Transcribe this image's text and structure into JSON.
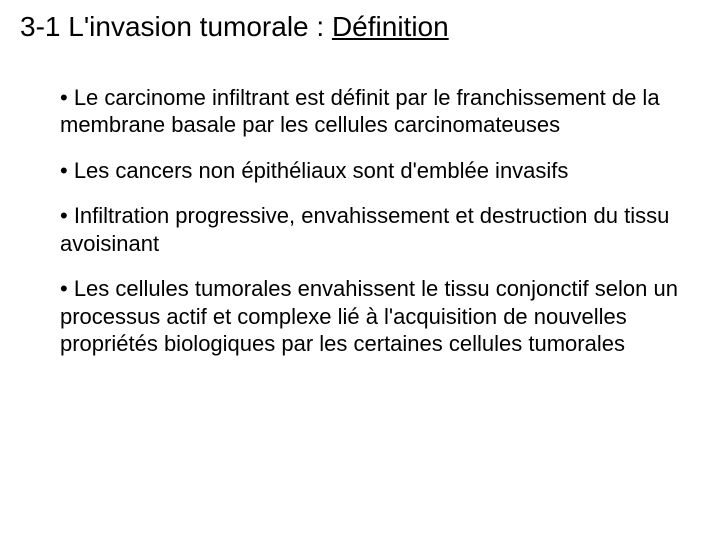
{
  "slide": {
    "title_prefix": "3-1 L'invasion tumorale : ",
    "title_underlined": "Définition",
    "title_fontsize": 28,
    "body_fontsize": 22,
    "text_color": "#000000",
    "background_color": "#ffffff",
    "font_family": "Comic Sans MS",
    "bullets": [
      "• Le carcinome infiltrant est définit par le franchissement de la membrane basale par les cellules carcinomateuses",
      "• Les cancers non épithéliaux sont d'emblée invasifs",
      "• Infiltration progressive, envahissement et destruction du tissu avoisinant",
      "• Les cellules tumorales envahissent le tissu conjonctif selon un processus actif et complexe lié à l'acquisition de nouvelles propriétés biologiques par les certaines cellules tumorales"
    ]
  }
}
